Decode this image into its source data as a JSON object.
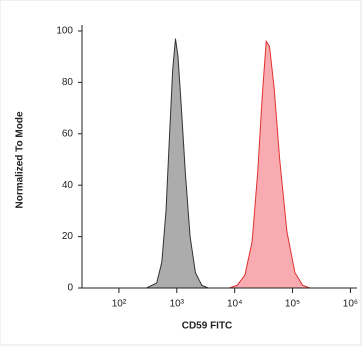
{
  "chart_data": {
    "type": "histogram-overlay",
    "xlabel": "CD59 FITC",
    "ylabel": "Normalized To Mode",
    "xscale": "log",
    "xlim": [
      23,
      1300000
    ],
    "xticks": [
      {
        "value": 100,
        "label": "10²"
      },
      {
        "value": 1000,
        "label": "10³"
      },
      {
        "value": 10000,
        "label": "10⁴"
      },
      {
        "value": 100000,
        "label": "10⁵"
      },
      {
        "value": 1000000,
        "label": "10⁶"
      }
    ],
    "ylim": [
      0,
      100
    ],
    "yticks": [
      0,
      20,
      40,
      60,
      80,
      100
    ],
    "series": [
      {
        "color": "#a3a3a3",
        "stroke": "#333333",
        "x": [
          300,
          450,
          550,
          650,
          750,
          850,
          950,
          1050,
          1200,
          1400,
          1700,
          2100,
          2700,
          3500
        ],
        "values": [
          0,
          2,
          10,
          30,
          60,
          85,
          97,
          90,
          70,
          45,
          20,
          6,
          1,
          0
        ]
      },
      {
        "color": "#f7a3aa",
        "stroke": "#e0302f",
        "x": [
          8000,
          11000,
          15000,
          20000,
          25000,
          30000,
          35000,
          40000,
          48000,
          60000,
          80000,
          110000,
          150000,
          200000
        ],
        "values": [
          0,
          1,
          5,
          18,
          45,
          75,
          96,
          94,
          78,
          50,
          22,
          6,
          1,
          0
        ]
      }
    ]
  }
}
